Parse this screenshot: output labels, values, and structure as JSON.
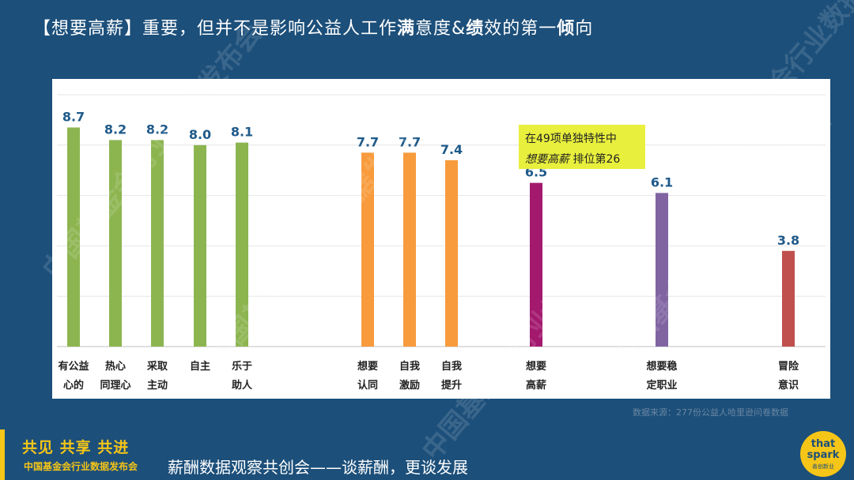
{
  "title": {
    "part1": "【想要高薪】重要，但并不是影响公益人工作",
    "bold1": "满",
    "part2": "意度&",
    "bold2": "绩",
    "part3": "效的第一",
    "bold3": "倾",
    "part4": "向"
  },
  "chart_data": {
    "type": "bar",
    "title": "",
    "ylim": [
      0,
      10
    ],
    "grid": true,
    "bars": [
      {
        "label": [
          "有公益",
          "心的"
        ],
        "value": 8.7,
        "color": "#8cb550"
      },
      {
        "label": [
          "热心",
          "同理心"
        ],
        "value": 8.2,
        "color": "#8cb550"
      },
      {
        "label": [
          "采取",
          "主动"
        ],
        "value": 8.2,
        "color": "#8cb550"
      },
      {
        "label": [
          "自主"
        ],
        "value": 8.0,
        "color": "#8cb550"
      },
      {
        "label": [
          "乐于",
          "助人"
        ],
        "value": 8.1,
        "color": "#8cb550"
      },
      {
        "label": [
          "想要",
          "认同"
        ],
        "value": 7.7,
        "color": "#f79b3c"
      },
      {
        "label": [
          "自我",
          "激励"
        ],
        "value": 7.7,
        "color": "#f79b3c"
      },
      {
        "label": [
          "自我",
          "提升"
        ],
        "value": 7.4,
        "color": "#f79b3c"
      },
      {
        "label": [
          "想要",
          "高薪"
        ],
        "value": 6.5,
        "color": "#a3196e"
      },
      {
        "label": [
          "想要稳",
          "定职业"
        ],
        "value": 6.1,
        "color": "#8064a2"
      },
      {
        "label": [
          "冒险",
          "意识"
        ],
        "value": 3.8,
        "color": "#c0504d"
      }
    ],
    "annotation": {
      "line1": "在49项单独特性中",
      "line2_italic": "想要高薪",
      "line2_rest": " 排位第26",
      "bg": "#e8ef3c"
    }
  },
  "source": "数据来源：277份公益人哈里逊问卷数据",
  "watermark": "中国基金会行业数据发布会",
  "footer": {
    "slogan": "共见 共享 共进",
    "org": "中国基金会行业数据发布会",
    "subtitle": "薪酬数据观察共创会——谈薪酬，更谈发展",
    "logo_line1": "that",
    "logo_line2": "spark",
    "logo_small": "善创新业"
  },
  "colors": {
    "background": "#1c4f7a",
    "accent": "#f5c518",
    "label": "#1f5a8a"
  }
}
